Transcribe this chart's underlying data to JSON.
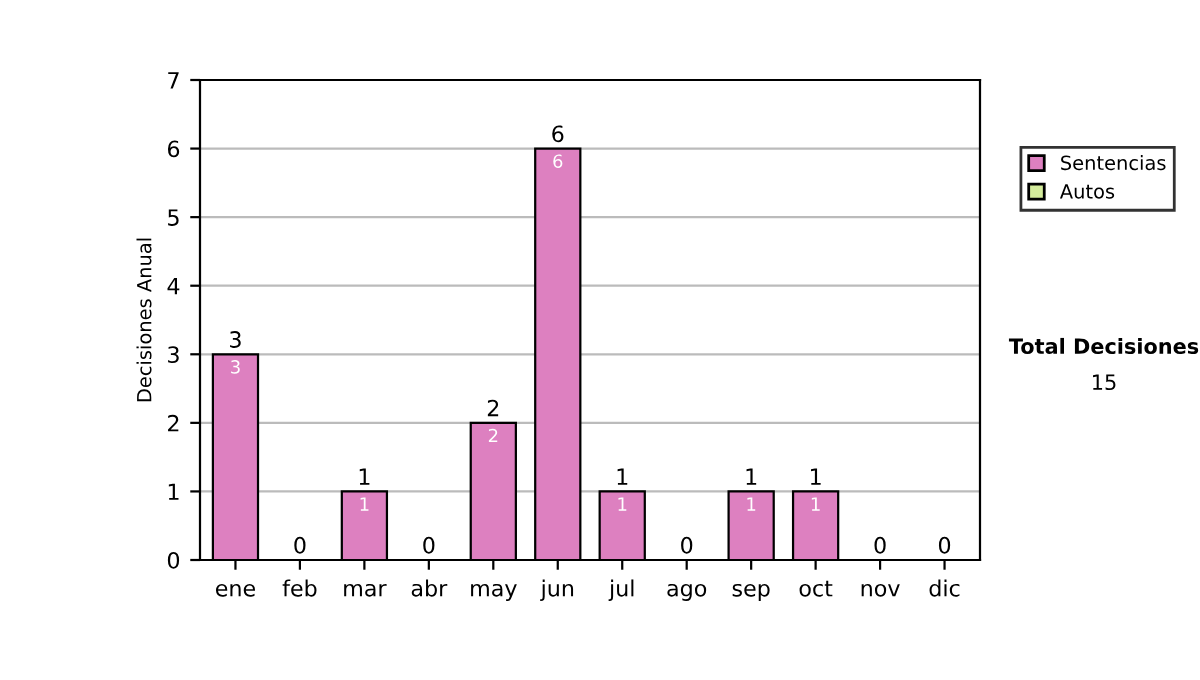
{
  "chart_data": {
    "type": "bar",
    "stacked": true,
    "ylabel": "Decisiones Anual",
    "categories": [
      "ene",
      "feb",
      "mar",
      "abr",
      "may",
      "jun",
      "jul",
      "ago",
      "sep",
      "oct",
      "nov",
      "dic"
    ],
    "series": [
      {
        "name": "Sentencias",
        "color": "#dd80c0",
        "values": [
          3,
          0,
          1,
          0,
          2,
          6,
          1,
          0,
          1,
          1,
          0,
          0
        ],
        "value_labels": [
          "3",
          null,
          "1",
          null,
          "2",
          "6",
          "1",
          null,
          "1",
          "1",
          null,
          null
        ]
      },
      {
        "name": "Autos",
        "color": "#d4ec9c",
        "values": [
          0,
          0,
          0,
          0,
          0,
          0,
          0,
          0,
          0,
          0,
          0,
          0
        ]
      }
    ],
    "totals": [
      "3",
      "0",
      "1",
      "0",
      "2",
      "6",
      "1",
      "0",
      "1",
      "1",
      "0",
      "0"
    ],
    "ylim": [
      0,
      7
    ],
    "yticks": [
      0,
      1,
      2,
      3,
      4,
      5,
      6,
      7
    ],
    "grid": "y",
    "legend": "right",
    "annotations": [
      "Total Decisiones",
      "15"
    ]
  }
}
